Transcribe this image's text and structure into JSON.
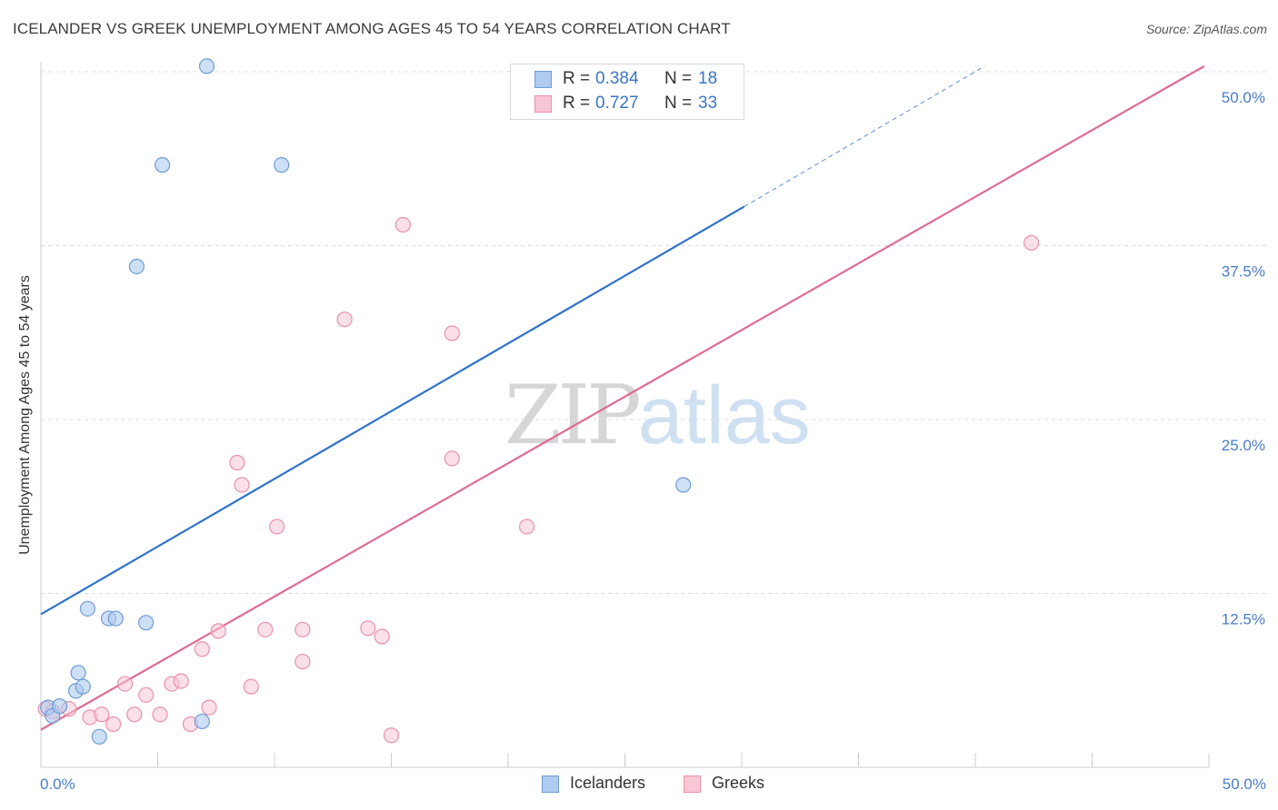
{
  "title": "ICELANDER VS GREEK UNEMPLOYMENT AMONG AGES 45 TO 54 YEARS CORRELATION CHART",
  "source": "Source: ZipAtlas.com",
  "watermark": {
    "zip": "ZIP",
    "atlas": "atlas"
  },
  "legend": {
    "rows": [
      {
        "r_label": "R =",
        "r_value": "0.384",
        "n_label": "N =",
        "n_value": "18"
      },
      {
        "r_label": "R =",
        "r_value": "0.727",
        "n_label": "N =",
        "n_value": "33"
      }
    ]
  },
  "bottom_legend": [
    "Icelanders",
    "Greeks"
  ],
  "colors": {
    "icelanders_fill": "#aecbf0",
    "icelanders_stroke": "#6f9bd6",
    "icelanders_line": "#2e72cc",
    "greeks_fill": "#f8c6d4",
    "greeks_stroke": "#e891ab",
    "greeks_line": "#e06b93",
    "tick_text": "#4a7cc7",
    "grid": "#dcdcdc"
  },
  "chart_data": {
    "type": "scatter",
    "title": "ICELANDER VS GREEK UNEMPLOYMENT AMONG AGES 45 TO 54 YEARS CORRELATION CHART",
    "xlabel": "",
    "ylabel": "Unemployment Among Ages 45 to 54 years",
    "xlim": [
      0,
      50
    ],
    "ylim": [
      0,
      50
    ],
    "x_tick_labels": [
      "0.0%",
      "50.0%"
    ],
    "y_ticks": [
      12.5,
      25.0,
      37.5,
      50.0
    ],
    "y_tick_labels": [
      "12.5%",
      "25.0%",
      "37.5%",
      "50.0%"
    ],
    "grid": true,
    "series": [
      {
        "name": "Icelanders",
        "points": [
          [
            0.3,
            4.3
          ],
          [
            0.5,
            3.7
          ],
          [
            0.8,
            4.4
          ],
          [
            1.5,
            5.5
          ],
          [
            1.6,
            6.8
          ],
          [
            1.8,
            5.8
          ],
          [
            2.0,
            11.4
          ],
          [
            2.5,
            2.2
          ],
          [
            2.9,
            10.7
          ],
          [
            3.2,
            10.7
          ],
          [
            4.1,
            36.0
          ],
          [
            4.5,
            10.4
          ],
          [
            5.2,
            43.3
          ],
          [
            6.9,
            3.3
          ],
          [
            7.1,
            50.4
          ],
          [
            10.3,
            43.3
          ],
          [
            27.5,
            20.3
          ]
        ],
        "trend": {
          "x0": 0,
          "y0": 11.0,
          "x1": 30.1,
          "y1": 40.3,
          "dash_x1": 40.4,
          "dash_y1": 50.4
        }
      },
      {
        "name": "Greeks",
        "points": [
          [
            0.2,
            4.2
          ],
          [
            0.5,
            4.0
          ],
          [
            1.2,
            4.2
          ],
          [
            2.1,
            3.6
          ],
          [
            2.6,
            3.8
          ],
          [
            3.1,
            3.1
          ],
          [
            3.6,
            6.0
          ],
          [
            4.0,
            3.8
          ],
          [
            4.5,
            5.2
          ],
          [
            5.1,
            3.8
          ],
          [
            5.6,
            6.0
          ],
          [
            6.0,
            6.2
          ],
          [
            6.4,
            3.1
          ],
          [
            6.9,
            8.5
          ],
          [
            7.2,
            4.3
          ],
          [
            7.6,
            9.8
          ],
          [
            8.4,
            21.9
          ],
          [
            8.6,
            20.3
          ],
          [
            9.0,
            5.8
          ],
          [
            9.6,
            9.9
          ],
          [
            10.1,
            17.3
          ],
          [
            11.2,
            7.6
          ],
          [
            11.2,
            9.9
          ],
          [
            13.0,
            32.2
          ],
          [
            14.0,
            10.0
          ],
          [
            14.6,
            9.4
          ],
          [
            15.0,
            2.3
          ],
          [
            15.5,
            39.0
          ],
          [
            17.6,
            31.2
          ],
          [
            17.6,
            22.2
          ],
          [
            20.8,
            17.3
          ],
          [
            42.4,
            37.7
          ]
        ],
        "trend": {
          "x0": 0,
          "y0": 2.7,
          "x1": 49.8,
          "y1": 50.4
        }
      }
    ]
  }
}
